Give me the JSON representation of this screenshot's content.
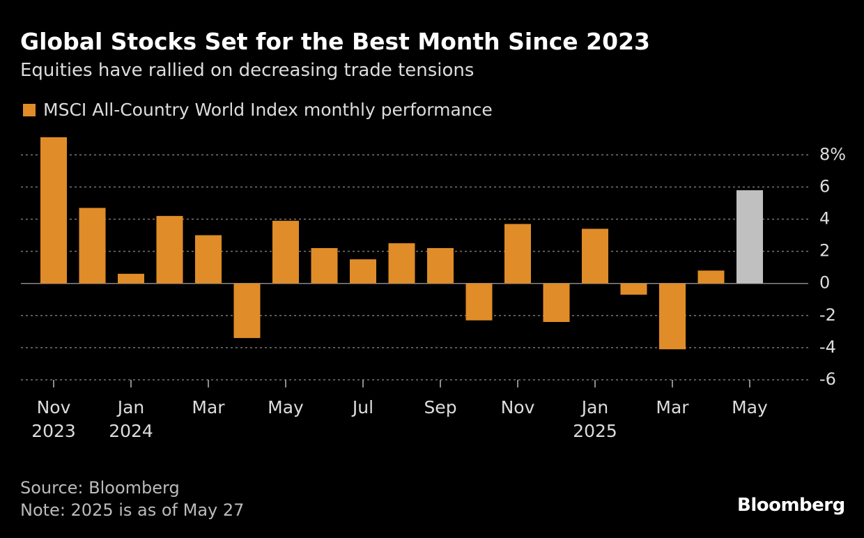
{
  "chart_data": {
    "type": "bar",
    "title": "Global Stocks Set for the Best Month Since 2023",
    "subtitle": "Equities have rallied on decreasing trade tensions",
    "categories": [
      "Nov\n2023",
      null,
      "Jan\n2024",
      null,
      "Mar",
      null,
      "May",
      null,
      "Jul",
      null,
      "Sep",
      null,
      "Nov",
      null,
      "Jan\n2025",
      null,
      "Mar",
      null,
      "May"
    ],
    "series": [
      {
        "name": "MSCI All-Country World Index monthly performance",
        "color": "#e08c28",
        "values": [
          9.1,
          4.7,
          0.6,
          4.2,
          3.0,
          -3.4,
          3.9,
          2.2,
          1.5,
          2.5,
          2.2,
          -2.3,
          3.7,
          -2.4,
          3.4,
          -0.7,
          -4.1,
          0.8,
          5.8
        ],
        "colors": [
          "#e08c28",
          "#e08c28",
          "#e08c28",
          "#e08c28",
          "#e08c28",
          "#e08c28",
          "#e08c28",
          "#e08c28",
          "#e08c28",
          "#e08c28",
          "#e08c28",
          "#e08c28",
          "#e08c28",
          "#e08c28",
          "#e08c28",
          "#e08c28",
          "#e08c28",
          "#e08c28",
          "#c0c0c0"
        ]
      }
    ],
    "ylim": [
      -6,
      9.4
    ],
    "yticks": [
      {
        "value": 8,
        "label": "8%"
      },
      6,
      4,
      2,
      0,
      -2,
      -4,
      -6
    ],
    "grid": true,
    "source": "Source: Bloomberg",
    "note": "Note: 2025 is as of May 27",
    "brand": "Bloomberg"
  }
}
